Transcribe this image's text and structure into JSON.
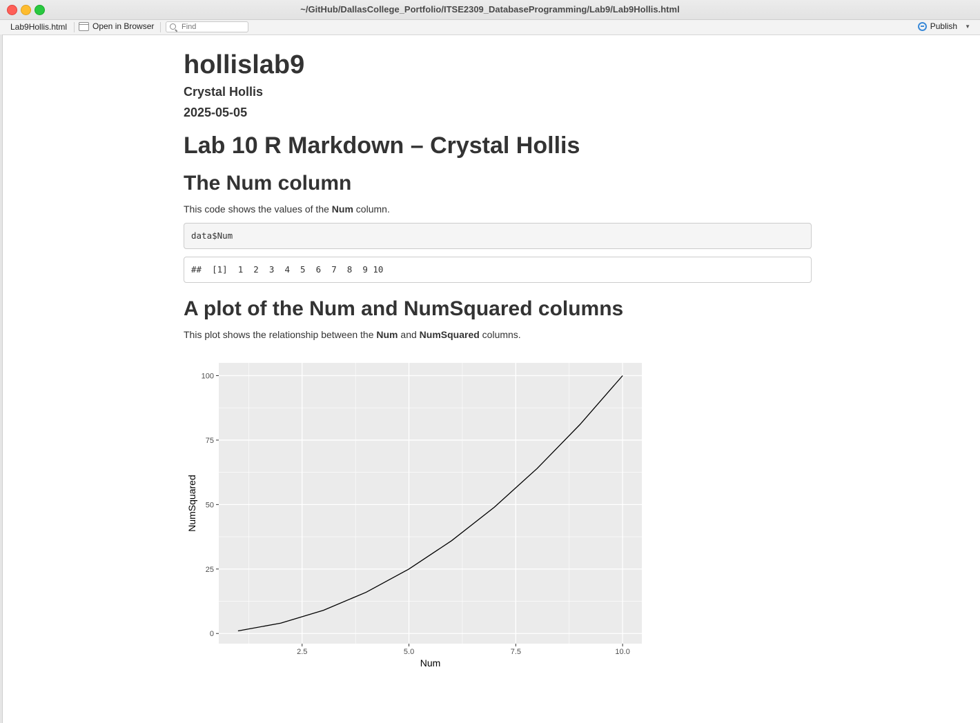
{
  "window": {
    "title": "~/GitHub/DallasCollege_Portfolio/ITSE2309_DatabaseProgramming/Lab9/Lab9Hollis.html"
  },
  "toolbar": {
    "file_name": "Lab9Hollis.html",
    "open_in_browser": "Open in Browser",
    "find_placeholder": "Find",
    "publish": "Publish"
  },
  "document": {
    "title": "hollislab9",
    "author": "Crystal Hollis",
    "date": "2025-05-05",
    "heading1": "Lab 10 R Markdown – Crystal Hollis",
    "section1": {
      "heading": "The Num column",
      "text_before": "This code shows the values of the ",
      "bold": "Num",
      "text_after": " column.",
      "code": "data$Num",
      "output": "##  [1]  1  2  3  4  5  6  7  8  9 10"
    },
    "section2": {
      "heading": "A plot of the Num and NumSquared columns",
      "text_before": "This plot shows the relationship between the ",
      "bold1": "Num",
      "text_mid": " and ",
      "bold2": "NumSquared",
      "text_after": " columns."
    }
  },
  "chart_data": {
    "type": "line",
    "x": [
      1,
      2,
      3,
      4,
      5,
      6,
      7,
      8,
      9,
      10
    ],
    "series": [
      {
        "values": [
          1,
          4,
          9,
          16,
          25,
          36,
          49,
          64,
          81,
          100
        ]
      }
    ],
    "title": "",
    "xlabel": "Num",
    "ylabel": "NumSquared",
    "xlim": [
      -0.35,
      0.35
    ],
    "ylim": [
      -0.35,
      0.35
    ],
    "xticks": [
      2.5,
      5.0,
      7.5,
      10.0
    ],
    "xtick_labels": [
      "2.5",
      "5.0",
      "7.5",
      "10.0"
    ],
    "yticks": [
      0,
      25,
      50,
      75,
      100
    ],
    "ytick_labels": [
      "0",
      "25",
      "50",
      "75",
      "100"
    ],
    "grid": true,
    "legend": "none",
    "colors": {
      "panel": "#ebebeb",
      "grid": "#ffffff",
      "line": "#000000"
    }
  }
}
